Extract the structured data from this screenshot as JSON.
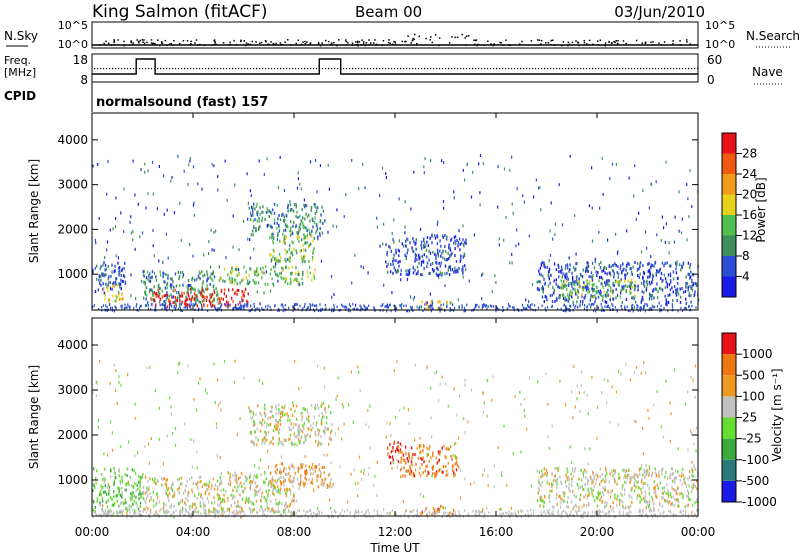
{
  "header": {
    "station": "King Salmon (fitACF)",
    "beam": "Beam 00",
    "date": "03/Jun/2010"
  },
  "top_panels": {
    "nsky_label": "N.Sky",
    "nsearch_label": "N.Search",
    "noise_ticks": [
      "10^5",
      "10^0"
    ],
    "freq_label": "Freq.",
    "freq_unit": "[MHz]",
    "freq_ticks": [
      "18",
      "8"
    ],
    "nave_label": "Nave",
    "nave_ticks": [
      "60",
      "0"
    ],
    "cpid_label": "CPID",
    "cpid_value": "normalsound (fast)  157",
    "freq_high_intervals": [
      [
        1.75,
        2.5
      ],
      [
        9.0,
        9.85
      ]
    ]
  },
  "x_axis": {
    "label": "Time UT",
    "ticks": [
      "00:00",
      "04:00",
      "08:00",
      "12:00",
      "16:00",
      "20:00",
      "00:00"
    ],
    "range_hours": [
      0,
      24
    ]
  },
  "power_panel": {
    "ylabel": "Slant Range [km]",
    "yticks": [
      "1000",
      "2000",
      "3000",
      "4000"
    ],
    "colorbar_label": "Power [dB]",
    "colorbar_ticks": [
      "4",
      "8",
      "12",
      "16",
      "20",
      "24",
      "28"
    ],
    "colors": [
      "#1a1ae6",
      "#2a4ed4",
      "#3d8f5c",
      "#4fbf4f",
      "#e8d21a",
      "#f29b1a",
      "#ee5a12",
      "#e6141a"
    ]
  },
  "velocity_panel": {
    "ylabel": "Slant Range [km]",
    "yticks": [
      "1000",
      "2000",
      "3000",
      "4000"
    ],
    "colorbar_label": "Velocity [m s⁻¹]",
    "colorbar_ticks": [
      "1000",
      "500",
      "100",
      "25",
      "-25",
      "-100",
      "-500",
      "-1000"
    ],
    "colors": [
      "#1a1ae6",
      "#2a7a7a",
      "#3daa3d",
      "#66dd33",
      "#c0c0c0",
      "#ee9922",
      "#ee7711",
      "#e6141a"
    ]
  },
  "chart_data": {
    "type": "heatmap",
    "title": "King Salmon (fitACF)",
    "xlabel": "Time UT",
    "ylabel": "Slant Range [km]",
    "xlim": [
      0,
      24
    ],
    "ylim": [
      200,
      4600
    ],
    "power_regions": [
      {
        "t": [
          0.0,
          1.3
        ],
        "r": [
          600,
          1300
        ],
        "level": 1
      },
      {
        "t": [
          0.4,
          1.2
        ],
        "r": [
          400,
          800
        ],
        "level": 4
      },
      {
        "t": [
          2.0,
          5.0
        ],
        "r": [
          300,
          1100
        ],
        "level": 2
      },
      {
        "t": [
          2.3,
          4.9
        ],
        "r": [
          300,
          700
        ],
        "level": 7
      },
      {
        "t": [
          5.0,
          6.2
        ],
        "r": [
          300,
          700
        ],
        "level": 7
      },
      {
        "t": [
          5.0,
          8.8
        ],
        "r": [
          800,
          1200
        ],
        "level": 3
      },
      {
        "t": [
          6.2,
          9.2
        ],
        "r": [
          1900,
          2600
        ],
        "level": 2
      },
      {
        "t": [
          7.0,
          8.8
        ],
        "r": [
          1300,
          1900
        ],
        "level": 3
      },
      {
        "t": [
          11.6,
          14.8
        ],
        "r": [
          1000,
          1900
        ],
        "level": 1
      },
      {
        "t": [
          13.0,
          14.3
        ],
        "r": [
          250,
          450
        ],
        "level": 4
      },
      {
        "t": [
          17.6,
          24.0
        ],
        "r": [
          400,
          1300
        ],
        "level": 1
      },
      {
        "t": [
          18.5,
          21.5
        ],
        "r": [
          500,
          900
        ],
        "level": 3
      }
    ],
    "velocity_regions": [
      {
        "t": [
          0.0,
          2.0
        ],
        "r": [
          300,
          1300
        ],
        "class": 3
      },
      {
        "t": [
          2.0,
          5.0
        ],
        "r": [
          300,
          1100
        ],
        "class": 4
      },
      {
        "t": [
          5.0,
          8.0
        ],
        "r": [
          300,
          1200
        ],
        "class": 4
      },
      {
        "t": [
          6.2,
          9.5
        ],
        "r": [
          1800,
          2700
        ],
        "class": 4
      },
      {
        "t": [
          7.0,
          9.5
        ],
        "r": [
          800,
          1400
        ],
        "class": 5
      },
      {
        "t": [
          11.6,
          12.2
        ],
        "r": [
          1400,
          1900
        ],
        "class": 7
      },
      {
        "t": [
          12.2,
          14.5
        ],
        "r": [
          1100,
          1800
        ],
        "class": 6
      },
      {
        "t": [
          13.0,
          14.3
        ],
        "r": [
          250,
          450
        ],
        "class": 6
      },
      {
        "t": [
          17.6,
          24.0
        ],
        "r": [
          400,
          1300
        ],
        "class": 4
      }
    ]
  }
}
